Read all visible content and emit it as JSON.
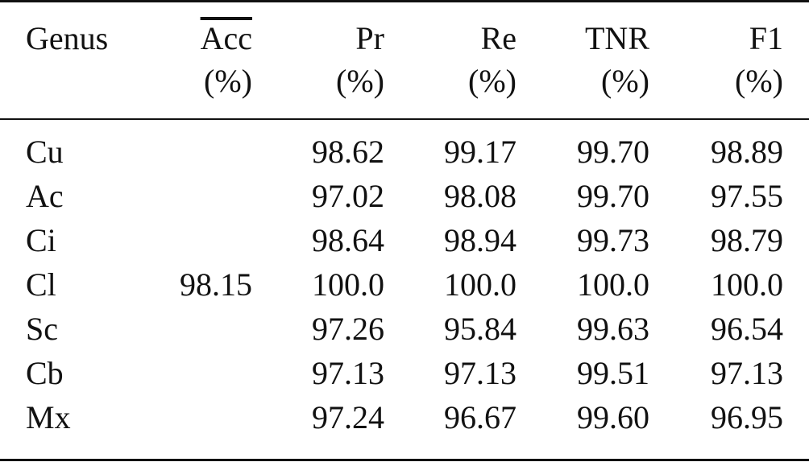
{
  "table": {
    "headers": [
      {
        "line1": "Genus",
        "line2": ""
      },
      {
        "line1": "Acc",
        "line2": "(%)",
        "overline": true
      },
      {
        "line1": "Pr",
        "line2": "(%)"
      },
      {
        "line1": "Re",
        "line2": "(%)"
      },
      {
        "line1": "TNR",
        "line2": "(%)"
      },
      {
        "line1": "F1",
        "line2": "(%)"
      }
    ],
    "acc_mean": "98.15",
    "rows": [
      {
        "genus": "Cu",
        "pr": "98.62",
        "re": "99.17",
        "tnr": "99.70",
        "f1": "98.89"
      },
      {
        "genus": "Ac",
        "pr": "97.02",
        "re": "98.08",
        "tnr": "99.70",
        "f1": "97.55"
      },
      {
        "genus": "Ci",
        "pr": "98.64",
        "re": "98.94",
        "tnr": "99.73",
        "f1": "98.79"
      },
      {
        "genus": "Cl",
        "pr": "100.0",
        "re": "100.0",
        "tnr": "100.0",
        "f1": "100.0"
      },
      {
        "genus": "Sc",
        "pr": "97.26",
        "re": "95.84",
        "tnr": "99.63",
        "f1": "96.54"
      },
      {
        "genus": "Cb",
        "pr": "97.13",
        "re": "97.13",
        "tnr": "99.51",
        "f1": "97.13"
      },
      {
        "genus": "Mx",
        "pr": "97.24",
        "re": "96.67",
        "tnr": "99.60",
        "f1": "96.95"
      }
    ]
  }
}
